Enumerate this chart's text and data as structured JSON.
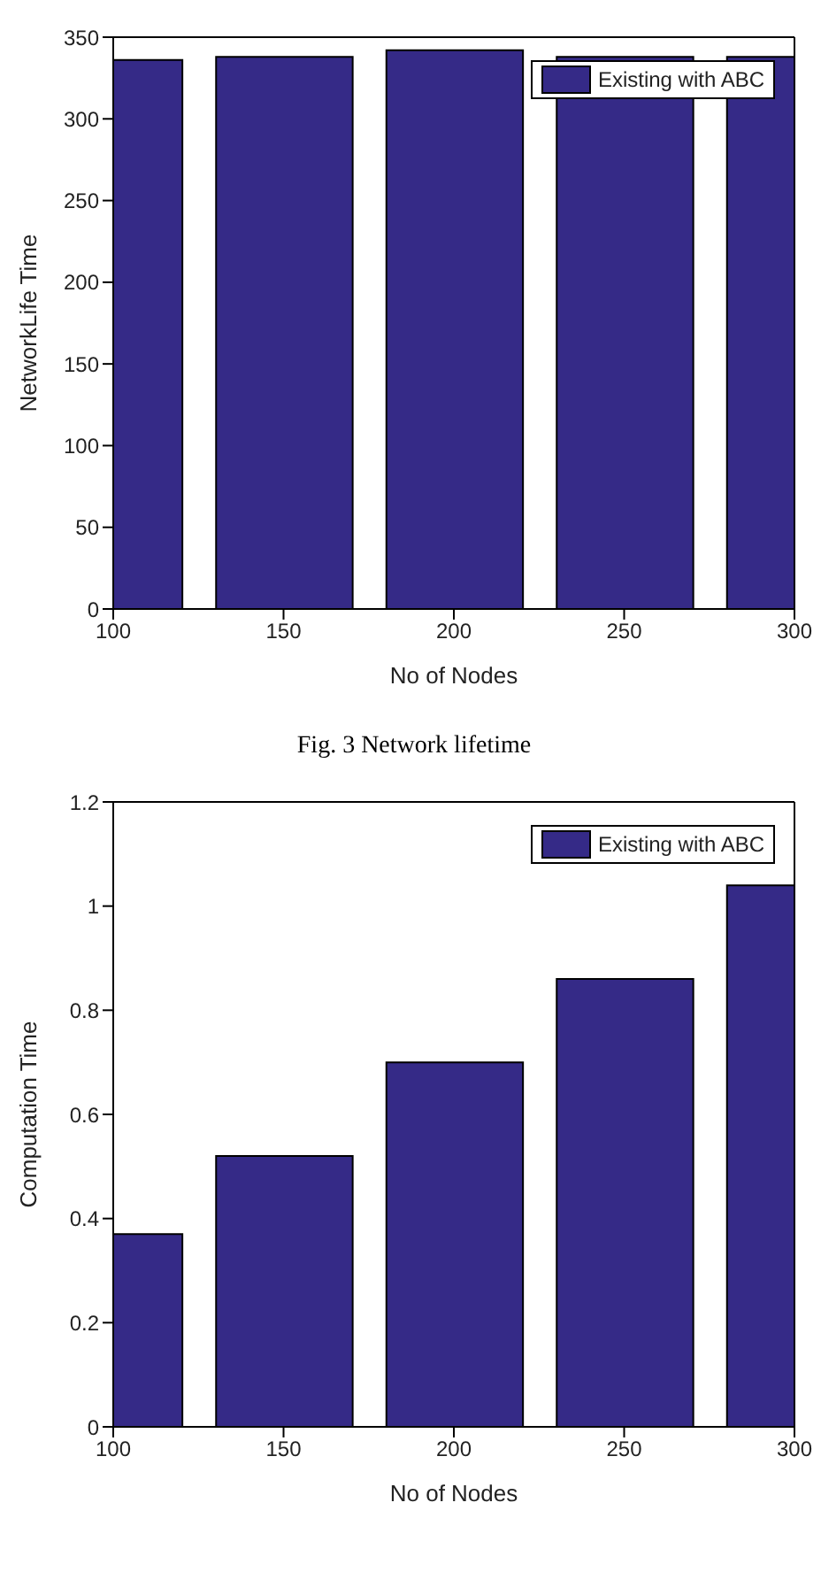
{
  "chart_data": [
    {
      "type": "bar",
      "xlabel": "No of Nodes",
      "ylabel": "NetworkLife Time",
      "annotations": [
        "Fig. 3 Network lifetime"
      ],
      "x": [
        100,
        150,
        200,
        250,
        300
      ],
      "xlim": [
        100,
        300
      ],
      "xticks": [
        100,
        150,
        200,
        250,
        300
      ],
      "ylim": [
        0,
        350
      ],
      "yticks": [
        0,
        50,
        100,
        150,
        200,
        250,
        300,
        350
      ],
      "legend": "top right",
      "series": [
        {
          "name": "Existing with ABC",
          "color": "#352a87",
          "values": [
            336,
            338,
            342,
            338,
            338
          ]
        }
      ]
    },
    {
      "type": "bar",
      "xlabel": "No of Nodes",
      "ylabel": "Computation Time",
      "x": [
        100,
        150,
        200,
        250,
        300
      ],
      "xlim": [
        100,
        300
      ],
      "xticks": [
        100,
        150,
        200,
        250,
        300
      ],
      "ylim": [
        0,
        1.2
      ],
      "yticks": [
        0,
        0.2,
        0.4,
        0.6,
        0.8,
        1,
        1.2
      ],
      "legend": "top right",
      "series": [
        {
          "name": "Existing with ABC",
          "color": "#352a87",
          "values": [
            0.37,
            0.52,
            0.7,
            0.86,
            1.04
          ]
        }
      ]
    }
  ]
}
